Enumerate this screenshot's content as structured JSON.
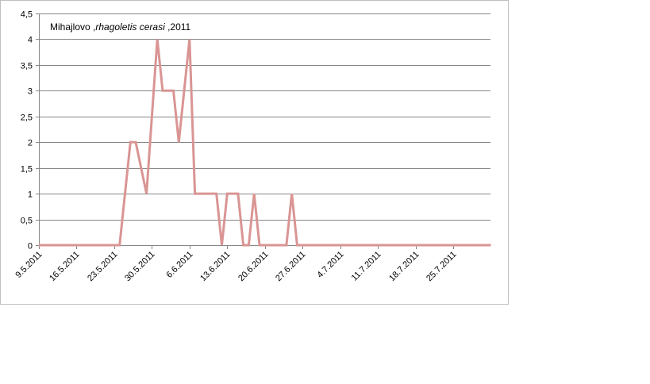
{
  "chart_data": {
    "type": "line",
    "title_parts": [
      {
        "text": "Mihajlovo ,",
        "italic": false
      },
      {
        "text": "rhagoletis cerasi",
        "italic": true
      },
      {
        "text": " ,2011",
        "italic": false
      }
    ],
    "xlabel": "",
    "ylabel": "",
    "ylim": [
      0,
      4.5
    ],
    "yticks": [
      "0",
      "0,5",
      "1",
      "1,5",
      "2",
      "2,5",
      "3",
      "3,5",
      "4",
      "4,5"
    ],
    "xlim": [
      "2011-05-09",
      "2011-08-01"
    ],
    "xticks": [
      {
        "label": "9.5.2011",
        "date": "2011-05-09"
      },
      {
        "label": "16.5.2011",
        "date": "2011-05-16"
      },
      {
        "label": "23.5.2011",
        "date": "2011-05-23"
      },
      {
        "label": "30.5.2011",
        "date": "2011-05-30"
      },
      {
        "label": "6.6.2011",
        "date": "2011-06-06"
      },
      {
        "label": "13.6.2011",
        "date": "2011-06-13"
      },
      {
        "label": "20.6.2011",
        "date": "2011-06-20"
      },
      {
        "label": "27.6.2011",
        "date": "2011-06-27"
      },
      {
        "label": "4.7.2011",
        "date": "2011-07-04"
      },
      {
        "label": "11.7.2011",
        "date": "2011-07-11"
      },
      {
        "label": "18.7.2011",
        "date": "2011-07-18"
      },
      {
        "label": "25.7.2011",
        "date": "2011-07-25"
      }
    ],
    "grid": true,
    "legend": "none",
    "series": [
      {
        "color": "#d99594",
        "points": [
          {
            "x": "2011-05-09",
            "y": 0
          },
          {
            "x": "2011-05-24",
            "y": 0
          },
          {
            "x": "2011-05-26",
            "y": 2
          },
          {
            "x": "2011-05-27",
            "y": 2
          },
          {
            "x": "2011-05-29",
            "y": 1
          },
          {
            "x": "2011-05-31",
            "y": 4
          },
          {
            "x": "2011-06-01",
            "y": 3
          },
          {
            "x": "2011-06-03",
            "y": 3
          },
          {
            "x": "2011-06-04",
            "y": 2
          },
          {
            "x": "2011-06-06",
            "y": 4
          },
          {
            "x": "2011-06-07",
            "y": 1
          },
          {
            "x": "2011-06-11",
            "y": 1
          },
          {
            "x": "2011-06-12",
            "y": 0
          },
          {
            "x": "2011-06-13",
            "y": 1
          },
          {
            "x": "2011-06-15",
            "y": 1
          },
          {
            "x": "2011-06-16",
            "y": 0
          },
          {
            "x": "2011-06-17",
            "y": 0
          },
          {
            "x": "2011-06-18",
            "y": 1
          },
          {
            "x": "2011-06-19",
            "y": 0
          },
          {
            "x": "2011-06-24",
            "y": 0
          },
          {
            "x": "2011-06-25",
            "y": 1
          },
          {
            "x": "2011-06-26",
            "y": 0
          },
          {
            "x": "2011-08-01",
            "y": 0
          }
        ]
      }
    ]
  }
}
